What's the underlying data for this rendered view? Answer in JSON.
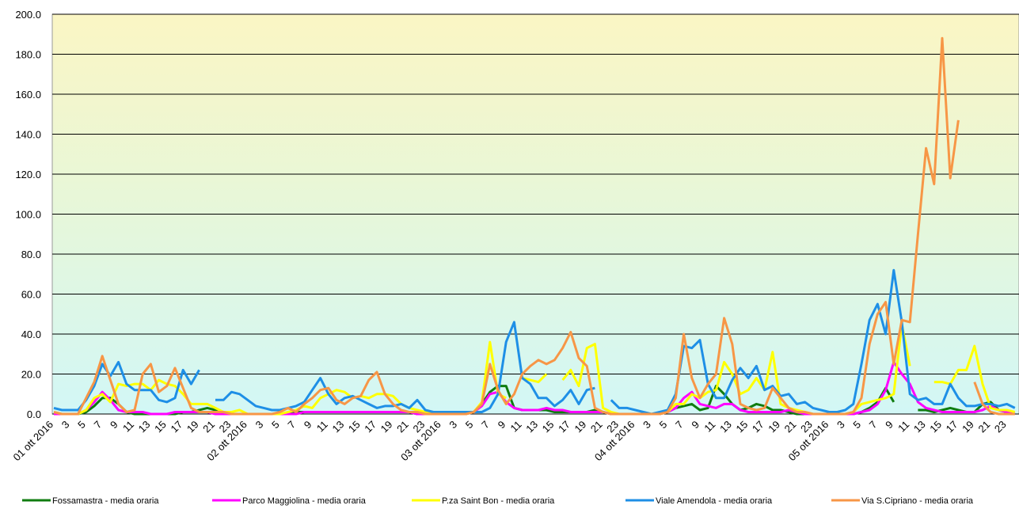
{
  "chart_data": {
    "type": "line",
    "categories": [
      "01 ott 2016",
      null,
      "3",
      null,
      "5",
      null,
      "7",
      null,
      "9",
      null,
      "11",
      null,
      "13",
      null,
      "15",
      null,
      "17",
      null,
      "19",
      null,
      "21",
      null,
      "23",
      null,
      "02 ott 2016",
      null,
      "3",
      null,
      "5",
      null,
      "7",
      null,
      "9",
      null,
      "11",
      null,
      "13",
      null,
      "15",
      null,
      "17",
      null,
      "19",
      null,
      "21",
      null,
      "23",
      null,
      "03 ott 2016",
      null,
      "3",
      null,
      "5",
      null,
      "7",
      null,
      "9",
      null,
      "11",
      null,
      "13",
      null,
      "15",
      null,
      "17",
      null,
      "19",
      null,
      "21",
      null,
      "23",
      null,
      "04 ott 2016",
      null,
      "3",
      null,
      "5",
      null,
      "7",
      null,
      "9",
      null,
      "11",
      null,
      "13",
      null,
      "15",
      null,
      "17",
      null,
      "19",
      null,
      "21",
      null,
      "23",
      null,
      "05 ott 2016",
      null,
      "3",
      null,
      "5",
      null,
      "7",
      null,
      "9",
      null,
      "11",
      null,
      "13",
      null,
      "15",
      null,
      "17",
      null,
      "19",
      null,
      "21",
      null,
      "23",
      null
    ],
    "ylim": [
      0,
      200
    ],
    "yticks": [
      {
        "value": 0,
        "label": "0.0"
      },
      {
        "value": 20,
        "label": "20.0"
      },
      {
        "value": 40,
        "label": "40.0"
      },
      {
        "value": 60,
        "label": "60.0"
      },
      {
        "value": 80,
        "label": "80.0"
      },
      {
        "value": 100,
        "label": "100.0"
      },
      {
        "value": 120,
        "label": "120.0"
      },
      {
        "value": 140,
        "label": "140.0"
      },
      {
        "value": 160,
        "label": "160.0"
      },
      {
        "value": 180,
        "label": "180.0"
      },
      {
        "value": 200,
        "label": "200.0"
      }
    ],
    "grid": true,
    "legend": "bottom",
    "series": [
      {
        "name": "Fossamastra - media oraria",
        "color": "#107c10",
        "values": [
          0,
          0,
          0,
          0,
          1,
          4,
          8,
          8,
          5,
          1,
          0,
          0,
          0,
          0,
          0,
          0,
          1,
          1,
          2,
          3,
          2,
          1,
          0,
          0,
          0,
          0,
          0,
          0,
          0,
          0,
          1,
          1,
          1,
          1,
          1,
          1,
          1,
          1,
          1,
          1,
          1,
          1,
          1,
          1,
          1,
          0,
          0,
          0,
          0,
          0,
          0,
          0,
          1,
          5,
          11,
          14,
          14,
          3,
          2,
          2,
          2,
          2,
          1,
          1,
          1,
          1,
          1,
          2,
          1,
          0,
          0,
          0,
          0,
          0,
          0,
          0,
          1,
          3,
          4,
          5,
          2,
          3,
          14,
          10,
          5,
          2,
          3,
          5,
          4,
          2,
          2,
          1,
          0,
          0,
          0,
          0,
          0,
          0,
          0,
          0,
          1,
          3,
          6,
          13,
          6,
          null,
          null,
          2,
          2,
          1,
          2,
          3,
          2,
          1,
          1,
          5,
          6,
          2,
          1,
          0
        ]
      },
      {
        "name": "Parco Maggiolina - media oraria",
        "color": "#ff00ff",
        "values": [
          0,
          0,
          0,
          0,
          2,
          6,
          11,
          7,
          2,
          1,
          1,
          1,
          0,
          0,
          0,
          1,
          1,
          1,
          1,
          1,
          0,
          0,
          0,
          0,
          0,
          0,
          0,
          0,
          0,
          0,
          0,
          1,
          1,
          1,
          1,
          1,
          1,
          1,
          1,
          1,
          1,
          1,
          1,
          1,
          1,
          0,
          0,
          0,
          0,
          0,
          0,
          0,
          1,
          4,
          10,
          11,
          6,
          3,
          2,
          2,
          2,
          3,
          2,
          2,
          1,
          1,
          1,
          1,
          1,
          0,
          0,
          0,
          0,
          0,
          0,
          0,
          1,
          3,
          8,
          11,
          5,
          4,
          3,
          5,
          5,
          2,
          1,
          1,
          1,
          1,
          1,
          2,
          1,
          0,
          0,
          0,
          0,
          0,
          0,
          0,
          1,
          2,
          5,
          12,
          26,
          20,
          15,
          6,
          3,
          2,
          1,
          1,
          1,
          1,
          1,
          2,
          4,
          2,
          1,
          0
        ]
      },
      {
        "name": "P.za Saint Bon - media oraria",
        "color": "#ffff00",
        "values": [
          1,
          0,
          0,
          0,
          2,
          8,
          10,
          6,
          15,
          14,
          15,
          15,
          12,
          17,
          15,
          14,
          10,
          5,
          5,
          5,
          3,
          1,
          1,
          2,
          0,
          0,
          0,
          0,
          0,
          1,
          2,
          4,
          3,
          8,
          10,
          12,
          11,
          8,
          9,
          8,
          10,
          10,
          9,
          5,
          3,
          2,
          1,
          1,
          0,
          0,
          0,
          0,
          1,
          6,
          36,
          10,
          8,
          null,
          18,
          17,
          16,
          20,
          null,
          17,
          22,
          14,
          33,
          35,
          3,
          1,
          0,
          0,
          0,
          0,
          0,
          0,
          1,
          5,
          5,
          10,
          8,
          11,
          12,
          26,
          20,
          10,
          12,
          18,
          12,
          31,
          5,
          3,
          2,
          1,
          0,
          0,
          0,
          0,
          0,
          1,
          5,
          6,
          7,
          8,
          10,
          45,
          24,
          null,
          null,
          16,
          16,
          15,
          22,
          22,
          34,
          15,
          3,
          2,
          2,
          1
        ]
      },
      {
        "name": "Viale Amendola - media oraria",
        "color": "#1e8fe6",
        "values": [
          3,
          2,
          2,
          2,
          7,
          14,
          25,
          19,
          26,
          15,
          12,
          12,
          12,
          7,
          6,
          8,
          22,
          15,
          22,
          null,
          7,
          7,
          11,
          10,
          7,
          4,
          3,
          2,
          2,
          3,
          4,
          6,
          12,
          18,
          10,
          5,
          8,
          9,
          7,
          5,
          3,
          4,
          4,
          5,
          3,
          7,
          2,
          1,
          1,
          1,
          1,
          1,
          1,
          1,
          3,
          10,
          36,
          46,
          18,
          15,
          8,
          8,
          4,
          7,
          12,
          5,
          12,
          13,
          null,
          7,
          3,
          3,
          2,
          1,
          0,
          1,
          2,
          10,
          34,
          33,
          37,
          15,
          8,
          8,
          17,
          23,
          18,
          24,
          12,
          14,
          9,
          10,
          5,
          6,
          3,
          2,
          1,
          1,
          2,
          5,
          25,
          47,
          55,
          40,
          72,
          46,
          10,
          7,
          8,
          5,
          5,
          15,
          8,
          4,
          4,
          5,
          5,
          4,
          5,
          3
        ]
      },
      {
        "name": "Via S.Cipriano - media oraria",
        "color": "#f79646",
        "values": [
          1,
          0,
          0,
          0,
          8,
          16,
          29,
          17,
          5,
          1,
          2,
          20,
          25,
          11,
          14,
          23,
          13,
          3,
          1,
          1,
          1,
          1,
          0,
          0,
          0,
          0,
          0,
          0,
          1,
          3,
          1,
          5,
          8,
          12,
          13,
          7,
          5,
          8,
          9,
          17,
          21,
          10,
          5,
          2,
          1,
          1,
          0,
          0,
          0,
          0,
          0,
          0,
          1,
          5,
          25,
          12,
          5,
          10,
          20,
          24,
          27,
          25,
          27,
          33,
          41,
          28,
          24,
          3,
          1,
          0,
          0,
          0,
          0,
          0,
          0,
          0,
          1,
          8,
          40,
          18,
          8,
          15,
          20,
          48,
          35,
          5,
          3,
          2,
          3,
          13,
          8,
          3,
          1,
          1,
          0,
          0,
          0,
          0,
          0,
          1,
          8,
          35,
          50,
          56,
          25,
          47,
          46,
          90,
          133,
          115,
          188,
          118,
          147,
          null,
          16,
          5,
          1,
          0,
          0,
          0
        ]
      }
    ]
  }
}
